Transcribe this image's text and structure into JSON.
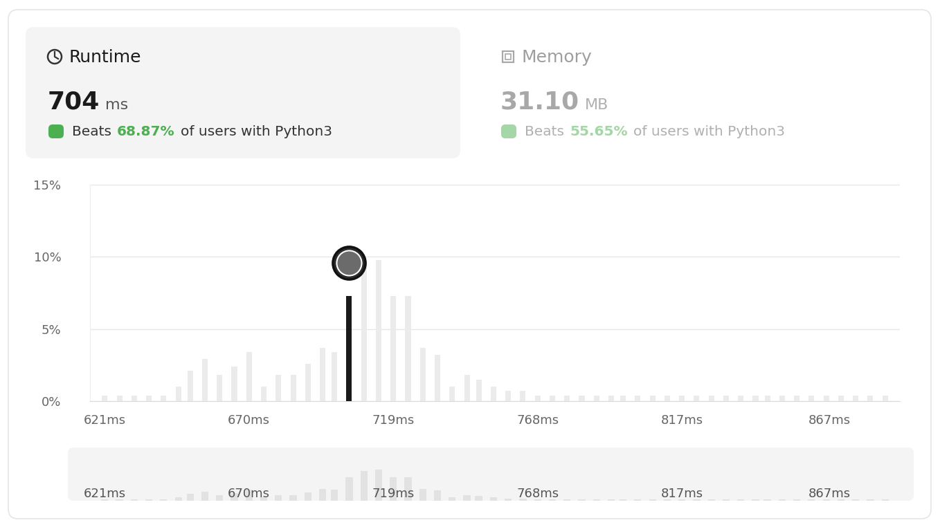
{
  "chart_data": {
    "type": "bar",
    "x": [
      621,
      626,
      631,
      636,
      641,
      646,
      650,
      655,
      660,
      665,
      670,
      675,
      680,
      685,
      690,
      695,
      699,
      704,
      709,
      714,
      719,
      724,
      729,
      734,
      739,
      744,
      748,
      753,
      758,
      763,
      768,
      773,
      778,
      783,
      788,
      793,
      797,
      802,
      807,
      812,
      817,
      822,
      827,
      832,
      837,
      842,
      846,
      851,
      856,
      861,
      866,
      871,
      876,
      881,
      886
    ],
    "values": [
      0.4,
      0.4,
      0.4,
      0.4,
      0.4,
      1.0,
      2.1,
      2.9,
      1.8,
      2.4,
      3.4,
      1.0,
      1.8,
      1.8,
      2.6,
      3.7,
      3.4,
      7.3,
      9.4,
      9.8,
      7.3,
      7.3,
      3.7,
      3.2,
      1.0,
      1.8,
      1.5,
      1.0,
      0.7,
      0.7,
      0.4,
      0.4,
      0.4,
      0.4,
      0.4,
      0.4,
      0.4,
      0.4,
      0.4,
      0.4,
      0.4,
      0.4,
      0.4,
      0.4,
      0.4,
      0.4,
      0.4,
      0.4,
      0.4,
      0.4,
      0.4,
      0.4,
      0.4,
      0.4,
      0.4
    ],
    "colors": [
      "#ebebeb",
      "#ebebeb",
      "#ebebeb",
      "#ebebeb",
      "#ebebeb",
      "#ebebeb",
      "#ebebeb",
      "#ebebeb",
      "#ebebeb",
      "#ebebeb",
      "#ebebeb",
      "#ebebeb",
      "#ebebeb",
      "#ebebeb",
      "#ebebeb",
      "#ebebeb",
      "#ebebeb",
      "#1a1a1a",
      "#ebebeb",
      "#ebebeb",
      "#ebebeb",
      "#ebebeb",
      "#ebebeb",
      "#ebebeb",
      "#ebebeb",
      "#ebebeb",
      "#ebebeb",
      "#ebebeb",
      "#ebebeb",
      "#ebebeb",
      "#ebebeb",
      "#ebebeb",
      "#ebebeb",
      "#ebebeb",
      "#ebebeb",
      "#ebebeb",
      "#ebebeb",
      "#ebebeb",
      "#ebebeb",
      "#ebebeb",
      "#ebebeb",
      "#ebebeb",
      "#ebebeb",
      "#ebebeb",
      "#ebebeb",
      "#ebebeb",
      "#ebebeb",
      "#ebebeb",
      "#ebebeb",
      "#ebebeb",
      "#ebebeb",
      "#ebebeb",
      "#ebebeb",
      "#ebebeb",
      "#ebebeb"
    ],
    "xlim": [
      616,
      891
    ],
    "xticks": [
      {
        "value": 621,
        "label": "621ms"
      },
      {
        "value": 670,
        "label": "670ms"
      },
      {
        "value": 719,
        "label": "719ms"
      },
      {
        "value": 768,
        "label": "768ms"
      },
      {
        "value": 817,
        "label": "817ms"
      },
      {
        "value": 867,
        "label": "867ms"
      }
    ],
    "ylim": [
      0,
      15
    ],
    "yticks": [
      {
        "value": 0,
        "label": "0%"
      },
      {
        "value": 5,
        "label": "5%"
      },
      {
        "value": 10,
        "label": "10%"
      },
      {
        "value": 15,
        "label": "15%"
      }
    ],
    "grid": true,
    "panels": [
      {
        "title": "Runtime",
        "value": "704",
        "unit": "ms",
        "label": "Beats",
        "percent": "68.87%",
        "text": "of users with Python3"
      },
      {
        "title": "Memory",
        "value": "31.10",
        "unit": "MB",
        "label": "Beats",
        "percent": "55.65%",
        "text": "of users with Python3"
      }
    ]
  }
}
